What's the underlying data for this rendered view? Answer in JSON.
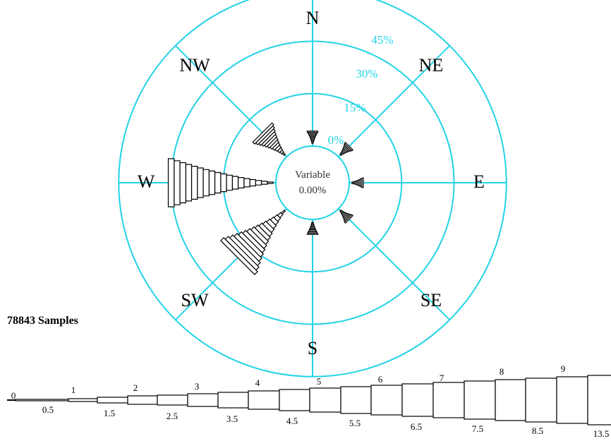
{
  "chart_data": {
    "type": "wind-rose",
    "directions": [
      "N",
      "NE",
      "E",
      "SE",
      "S",
      "SW",
      "W",
      "NW"
    ],
    "ring_labels": [
      "0%",
      "15%",
      "30%",
      "45%"
    ],
    "ring_values": [
      0,
      15,
      30,
      45
    ],
    "center_label": "Variable",
    "center_value": "0.00%",
    "samples_text": "78843 Samples",
    "colors": {
      "grid": "#22d3e6",
      "bars": "#000000"
    },
    "speed_bins_upper": [
      "0",
      "1",
      "2",
      "3",
      "4",
      "5",
      "6",
      "7",
      "8",
      "9"
    ],
    "speed_bins_lower": [
      "0.5",
      "1.5",
      "2.5",
      "3.5",
      "4.5",
      "5.5",
      "6.5",
      "7.5",
      "8.5",
      "13.5"
    ],
    "series": [
      {
        "direction": "N",
        "percent": 3.5,
        "bins": 10
      },
      {
        "direction": "NE",
        "percent": 3.5,
        "bins": 9
      },
      {
        "direction": "E",
        "percent": 1.5,
        "bins": 8
      },
      {
        "direction": "SE",
        "percent": 3.5,
        "bins": 9
      },
      {
        "direction": "S",
        "percent": 3.5,
        "bins": 10
      },
      {
        "direction": "SW",
        "percent": 19.0,
        "bins": 16
      },
      {
        "direction": "W",
        "percent": 30.0,
        "bins": 18
      },
      {
        "direction": "NW",
        "percent": 9.0,
        "bins": 12
      }
    ]
  }
}
